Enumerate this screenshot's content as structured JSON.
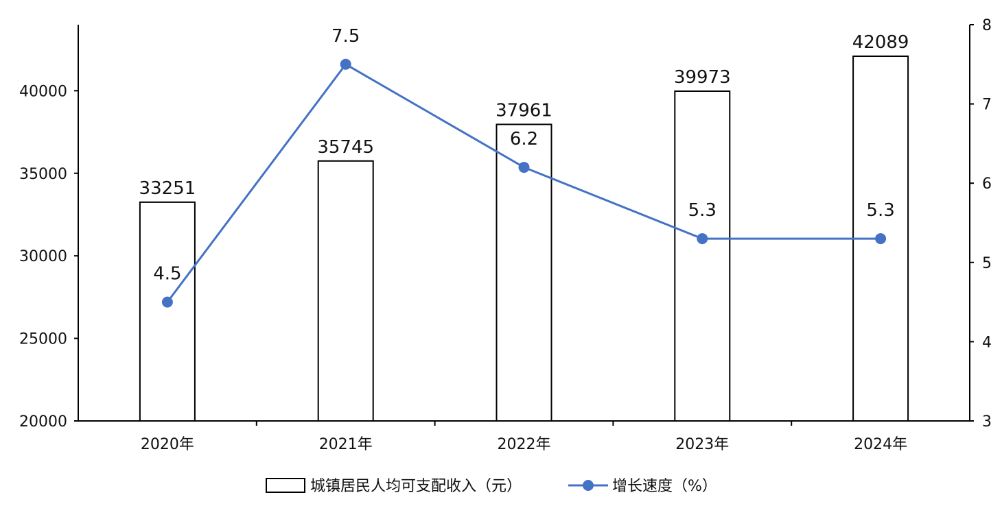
{
  "chart_data": {
    "type": "bar",
    "categories": [
      "2020年",
      "2021年",
      "2022年",
      "2023年",
      "2024年"
    ],
    "series": [
      {
        "name": "城镇居民人均可支配收入（元）",
        "type": "bar",
        "axis": "left",
        "values": [
          33251,
          35745,
          37961,
          39973,
          42089
        ]
      },
      {
        "name": "增长速度（%）",
        "type": "line",
        "axis": "right",
        "values": [
          4.5,
          7.5,
          6.2,
          5.3,
          5.3
        ]
      }
    ],
    "left_axis": {
      "ylim": [
        20000,
        44000
      ],
      "ticks": [
        20000,
        25000,
        30000,
        35000,
        40000
      ]
    },
    "right_axis": {
      "ylim": [
        3,
        8
      ],
      "ticks": [
        3,
        4,
        5,
        6,
        7,
        8
      ]
    },
    "bar_labels": [
      "33251",
      "35745",
      "37961",
      "39973",
      "42089"
    ],
    "line_labels": [
      "4.5",
      "7.5",
      "6.2",
      "5.3",
      "5.3"
    ],
    "legend_position": "bottom",
    "grid": false,
    "colors": {
      "bar_fill": "#ffffff",
      "bar_stroke": "#000000",
      "line": "#4472C4"
    }
  }
}
